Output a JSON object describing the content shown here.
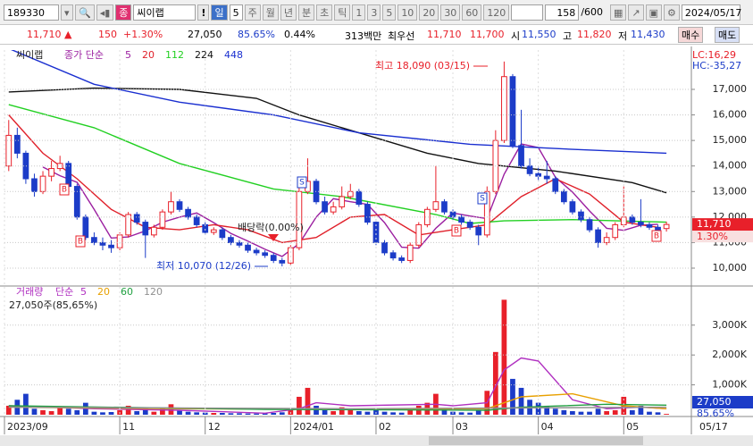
{
  "toolbar": {
    "code": "189330",
    "type": "종",
    "name": "씨이랩",
    "alert": "!",
    "period": "일",
    "period_n": "5",
    "units": [
      "주",
      "월",
      "년",
      "분",
      "초",
      "틱"
    ],
    "numbers": [
      "1",
      "3",
      "5",
      "10",
      "20",
      "30",
      "60",
      "120"
    ],
    "count": "158",
    "total": "/600",
    "date": "2024/05/17"
  },
  "quote": {
    "price": "11,710 ▲",
    "change": "150",
    "rate": "+1.30%",
    "volume": "27,050",
    "volume_rate": "85.65%",
    "turnover": "0.44%",
    "amount": "313백만",
    "best_label": "최우선",
    "ask": "11,710",
    "bid": "11,700",
    "open_label": "시",
    "open": "11,550",
    "high_label": "고",
    "high": "11,820",
    "low_label": "저",
    "low": "11,430",
    "buy": "매수",
    "sell": "매도"
  },
  "chart_data": [
    {
      "type": "candlestick",
      "title": "씨이랩",
      "ma_label": "종가 단순",
      "categories": [
        "2023/09",
        null,
        null,
        null,
        null,
        null,
        null,
        null,
        null,
        null,
        null,
        null,
        null,
        "11",
        null,
        null,
        null,
        null,
        null,
        null,
        null,
        null,
        null,
        "12",
        null,
        null,
        null,
        null,
        null,
        null,
        null,
        null,
        null,
        "2024/01",
        null,
        null,
        null,
        null,
        null,
        null,
        null,
        null,
        null,
        "02",
        null,
        null,
        null,
        null,
        null,
        null,
        null,
        null,
        "03",
        null,
        null,
        null,
        null,
        null,
        null,
        null,
        null,
        null,
        "04",
        null,
        null,
        null,
        null,
        null,
        null,
        null,
        null,
        null,
        "05",
        null,
        null,
        null,
        null,
        null
      ],
      "open": [
        14000,
        15200,
        14500,
        13500,
        13000,
        13600,
        13900,
        14100,
        13200,
        12000,
        11200,
        11000,
        10900,
        10800,
        11300,
        12100,
        11800,
        11300,
        11600,
        12200,
        12600,
        12300,
        12000,
        11700,
        11400,
        11500,
        11200,
        11000,
        10900,
        10700,
        10600,
        10500,
        10300,
        10200,
        10800,
        13000,
        13400,
        12600,
        12200,
        12400,
        12800,
        13000,
        12500,
        11800,
        11000,
        10600,
        10400,
        10300,
        10900,
        11700,
        12300,
        12600,
        12200,
        12000,
        11800,
        11600,
        11300,
        13000,
        15000,
        17500,
        14800,
        14000,
        13700,
        13600,
        13500,
        13000,
        12600,
        12200,
        11900,
        11500,
        11000,
        11200,
        11700,
        12000,
        11800,
        11700,
        11600,
        11550
      ],
      "high": [
        15800,
        15500,
        14600,
        13700,
        13800,
        14200,
        14400,
        14200,
        13300,
        12100,
        11400,
        11200,
        11100,
        11400,
        12200,
        12200,
        11900,
        11700,
        12300,
        13000,
        12700,
        12400,
        12100,
        11800,
        11600,
        11600,
        11300,
        11100,
        11000,
        10800,
        10700,
        10600,
        10400,
        10900,
        13200,
        14300,
        13500,
        12800,
        12600,
        13200,
        13300,
        13100,
        12600,
        11900,
        11100,
        10700,
        10500,
        11000,
        11800,
        12400,
        14000,
        12700,
        12300,
        12100,
        11900,
        11700,
        13200,
        15400,
        18090,
        17600,
        16200,
        14300,
        14000,
        14200,
        13600,
        13100,
        12700,
        12300,
        12000,
        11600,
        11400,
        11800,
        13200,
        12100,
        12700,
        11800,
        11700,
        11820
      ],
      "low": [
        13800,
        14300,
        13300,
        12800,
        12900,
        13400,
        13800,
        13100,
        11900,
        11100,
        10900,
        10700,
        10600,
        10700,
        11200,
        11700,
        10400,
        11200,
        11500,
        12100,
        12200,
        11900,
        11600,
        11300,
        11300,
        11100,
        10900,
        10800,
        10600,
        10500,
        10400,
        10200,
        10070,
        10100,
        10700,
        12900,
        12500,
        12100,
        12100,
        12300,
        12700,
        12400,
        11700,
        10900,
        10500,
        10300,
        10200,
        10200,
        10800,
        11600,
        12200,
        12100,
        11900,
        11700,
        11500,
        10900,
        11200,
        12900,
        14900,
        14700,
        13900,
        13600,
        13400,
        13300,
        12900,
        12500,
        12100,
        11800,
        11400,
        10800,
        10900,
        11100,
        11600,
        11700,
        11600,
        11500,
        11300,
        11430
      ],
      "close": [
        15200,
        14500,
        13500,
        13000,
        13600,
        13900,
        14100,
        13200,
        12000,
        11200,
        11000,
        10900,
        10800,
        11300,
        12100,
        11800,
        11300,
        11600,
        12200,
        12600,
        12300,
        12000,
        11700,
        11400,
        11500,
        11200,
        11000,
        10900,
        10700,
        10600,
        10500,
        10300,
        10200,
        10800,
        13000,
        13400,
        12600,
        12200,
        12400,
        12800,
        13000,
        12500,
        11800,
        11000,
        10600,
        10400,
        10300,
        10900,
        11700,
        12300,
        12600,
        12200,
        12000,
        11800,
        11600,
        11300,
        13000,
        15000,
        17500,
        14800,
        14000,
        13700,
        13600,
        13500,
        13000,
        12600,
        12200,
        11900,
        11500,
        11000,
        11200,
        11700,
        12000,
        11800,
        11700,
        11600,
        11500,
        11710
      ],
      "up_color": "#e8202a",
      "down_color": "#1c3cc8",
      "series": [
        {
          "name": "5",
          "color": "#9b1fa0",
          "x": [
            4,
            6,
            8,
            10,
            12,
            14,
            16,
            18,
            20,
            22,
            24,
            26,
            28,
            30,
            32,
            34,
            36,
            38,
            40,
            42,
            44,
            46,
            48,
            50,
            52,
            54,
            56,
            58,
            60,
            62,
            64,
            66,
            68,
            70,
            72,
            74,
            76
          ],
          "values": [
            13960,
            13620,
            13360,
            12300,
            11180,
            11220,
            11460,
            11800,
            12000,
            12160,
            11780,
            11360,
            11060,
            10740,
            10460,
            10960,
            12000,
            12720,
            12600,
            12500,
            11780,
            10820,
            10780,
            11560,
            12160,
            12040,
            11940,
            13680,
            14860,
            14720,
            13560,
            12980,
            12240,
            11560,
            11480,
            11680,
            11720
          ]
        },
        {
          "name": "20",
          "color": "#e0202a",
          "x": [
            0,
            4,
            8,
            12,
            16,
            20,
            24,
            28,
            32,
            36,
            40,
            44,
            48,
            52,
            56,
            60,
            64,
            68,
            72,
            76
          ],
          "values": [
            16000,
            14500,
            13500,
            12300,
            11600,
            11500,
            11700,
            11500,
            11000,
            11200,
            12000,
            12100,
            11300,
            11500,
            11700,
            12800,
            13500,
            12900,
            11800,
            11600
          ]
        },
        {
          "name": "112",
          "color": "#22d022",
          "x": [
            0,
            10,
            20,
            31,
            39,
            50,
            54,
            58,
            66,
            77
          ],
          "values": [
            16400,
            15500,
            14100,
            13100,
            12800,
            12100,
            11750,
            11850,
            11900,
            11800
          ]
        },
        {
          "name": "224",
          "color": "#111111",
          "x": [
            0,
            10,
            20,
            29,
            34,
            41,
            49,
            55,
            64,
            73,
            77
          ],
          "values": [
            16900,
            17050,
            17000,
            16650,
            16000,
            15300,
            14500,
            14100,
            13800,
            13350,
            12950
          ]
        },
        {
          "name": "448",
          "color": "#1a2fd0",
          "x": [
            0,
            10,
            20,
            31,
            41,
            54,
            66,
            77
          ],
          "values": [
            18600,
            17200,
            16500,
            16000,
            15300,
            14850,
            14650,
            14500
          ]
        }
      ],
      "ylim": [
        9370,
        18400
      ],
      "yticks": [
        {
          "value": 10000,
          "label": "10,000"
        },
        {
          "value": 11000,
          "label": "11,000"
        },
        {
          "value": 12000,
          "label": "12,000"
        },
        {
          "value": 13000,
          "label": "13,000"
        },
        {
          "value": 14000,
          "label": "14,000"
        },
        {
          "value": 15000,
          "label": "15,000"
        },
        {
          "value": 16000,
          "label": "16,000"
        },
        {
          "value": 17000,
          "label": "17,000"
        }
      ],
      "grid": true,
      "lc": "LC:16,29",
      "hc": "HC:-35,27",
      "high_note": "최고 18,090 (03/15)",
      "low_note": "최저 10,070 (12/26)",
      "dividend_note": "배당락(0.00%)",
      "signals": [
        "B",
        "B",
        "S",
        "S",
        "B",
        "B"
      ],
      "last_label": "11,710",
      "last_rate": "1.30%",
      "end_label": "05/17"
    },
    {
      "type": "bar",
      "title": "거래량",
      "ma_label": "단순",
      "values": [
        300000,
        500000,
        700000,
        200000,
        150000,
        120000,
        250000,
        200000,
        150000,
        400000,
        100000,
        80000,
        90000,
        150000,
        300000,
        120000,
        250000,
        100000,
        200000,
        350000,
        150000,
        100000,
        80000,
        70000,
        60000,
        60000,
        50000,
        50000,
        40000,
        40000,
        50000,
        60000,
        80000,
        150000,
        600000,
        900000,
        300000,
        150000,
        120000,
        250000,
        200000,
        120000,
        100000,
        150000,
        100000,
        80000,
        70000,
        150000,
        300000,
        400000,
        700000,
        200000,
        100000,
        80000,
        70000,
        150000,
        800000,
        2100000,
        3850000,
        1200000,
        900000,
        500000,
        400000,
        300000,
        200000,
        150000,
        120000,
        100000,
        100000,
        200000,
        120000,
        150000,
        600000,
        150000,
        300000,
        100000,
        80000,
        27050
      ],
      "series": [
        {
          "name": "5",
          "color": "#b030c0",
          "x": [
            0,
            10,
            20,
            30,
            34,
            36,
            40,
            50,
            52,
            56,
            58,
            60,
            62,
            66,
            70,
            74,
            77
          ],
          "values": [
            300000,
            200000,
            150000,
            50000,
            200000,
            400000,
            300000,
            350000,
            300000,
            400000,
            1500000,
            1900000,
            1800000,
            500000,
            200000,
            250000,
            200000
          ]
        },
        {
          "name": "20",
          "color": "#e8a000",
          "x": [
            0,
            20,
            40,
            56,
            60,
            66,
            72,
            77
          ],
          "values": [
            250000,
            200000,
            180000,
            200000,
            600000,
            700000,
            300000,
            200000
          ]
        },
        {
          "name": "60",
          "color": "#20a040",
          "x": [
            0,
            30,
            56,
            60,
            70,
            77
          ],
          "values": [
            300000,
            180000,
            150000,
            250000,
            350000,
            320000
          ]
        },
        {
          "name": "120",
          "color": "#909090",
          "x": [
            0,
            40,
            77
          ],
          "values": [
            250000,
            200000,
            250000
          ]
        }
      ],
      "ylim": [
        0,
        4250000
      ],
      "yticks": [
        {
          "value": 1000000,
          "label": "1,000K"
        },
        {
          "value": 2000000,
          "label": "2,000K"
        },
        {
          "value": 3000000,
          "label": "3,000K"
        }
      ],
      "summary": "27,050주(85,65%)",
      "last_label": "27,050",
      "last_rate": "85.65%"
    }
  ]
}
